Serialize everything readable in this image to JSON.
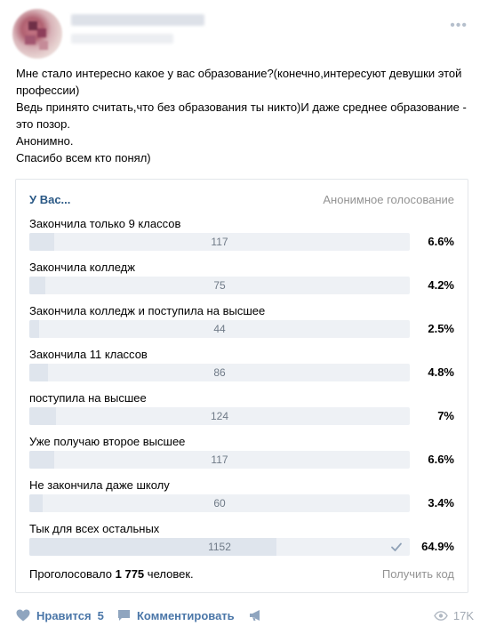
{
  "post": {
    "text_lines": [
      "Мне стало интересно какое у вас образование?(конечно,интересуют девушки этой профессии)",
      "Ведь принято считать,что без образования ты никто)И даже среднее образование - это позор.",
      "Анонимно.",
      "Спасибо всем кто понял)"
    ]
  },
  "poll": {
    "title": "У Вас...",
    "type_label": "Анонимное голосование",
    "options": [
      {
        "label": "Закончила только 9 классов",
        "count": "117",
        "percent": "6.6%",
        "share": 0.066
      },
      {
        "label": "Закончила колледж",
        "count": "75",
        "percent": "4.2%",
        "share": 0.042
      },
      {
        "label": "Закончила колледж и поступила на высшее",
        "count": "44",
        "percent": "2.5%",
        "share": 0.025
      },
      {
        "label": "Закончила 11 классов",
        "count": "86",
        "percent": "4.8%",
        "share": 0.048
      },
      {
        "label": "поступила на высшее",
        "count": "124",
        "percent": "7%",
        "share": 0.07
      },
      {
        "label": "Уже получаю второе высшее",
        "count": "117",
        "percent": "6.6%",
        "share": 0.066
      },
      {
        "label": "Не закончила даже школу",
        "count": "60",
        "percent": "3.4%",
        "share": 0.034
      },
      {
        "label": "Тык для всех остальных",
        "count": "1152",
        "percent": "64.9%",
        "share": 0.649,
        "voted": true
      }
    ],
    "footer_prefix": "Проголосовало",
    "total_votes": "1 775",
    "footer_suffix": "человек.",
    "get_code_label": "Получить код"
  },
  "actions": {
    "like_label": "Нравится",
    "like_count": "5",
    "comment_label": "Комментировать",
    "views_count": "17K"
  },
  "colors": {
    "link": "#2a5885",
    "action": "#4a76a8",
    "bar_bg": "#eef1f5",
    "bar_fill": "#dfe5ed"
  },
  "icons": {
    "like": "heart-icon",
    "comment": "comment-icon",
    "share": "megaphone-icon",
    "views": "eye-icon",
    "voted": "check-icon",
    "more": "more-dots-icon"
  }
}
